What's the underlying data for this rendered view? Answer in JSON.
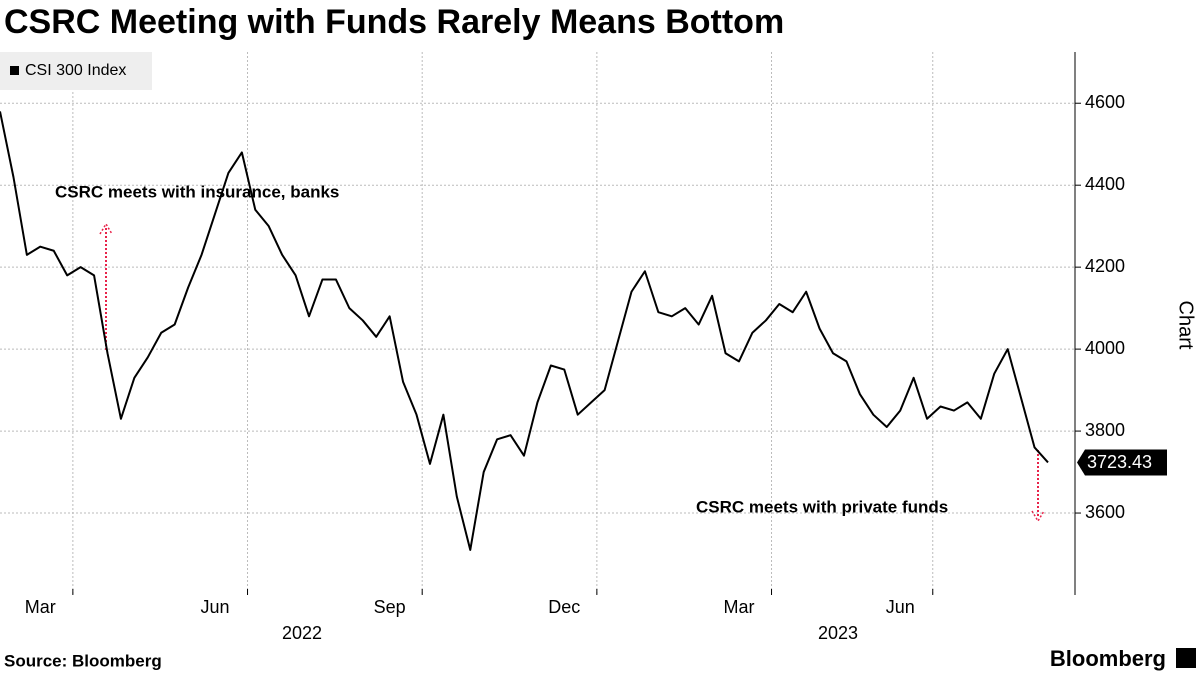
{
  "chart_data": {
    "type": "line",
    "title": "CSRC Meeting with Funds Rarely Means Bottom",
    "y_axis_label": "Chart",
    "source": "Source: Bloomberg",
    "logo": "Bloomberg",
    "years": [
      "2022",
      "2023"
    ],
    "annotations": [
      "CSRC meets with insurance, banks",
      "CSRC meets with private funds"
    ],
    "annotation_color": "#e8234a",
    "categories": [
      null,
      null,
      null,
      "Mar",
      null,
      null,
      null,
      null,
      null,
      null,
      null,
      null,
      null,
      null,
      null,
      null,
      "Jun",
      null,
      null,
      null,
      null,
      null,
      null,
      null,
      null,
      null,
      null,
      null,
      null,
      "Sep",
      null,
      null,
      null,
      null,
      null,
      null,
      null,
      null,
      null,
      null,
      null,
      null,
      "Dec",
      null,
      null,
      null,
      null,
      null,
      null,
      null,
      null,
      null,
      null,
      null,
      null,
      "Mar",
      null,
      null,
      null,
      null,
      null,
      null,
      null,
      null,
      null,
      null,
      null,
      "Jun",
      null,
      null,
      null,
      null,
      null,
      null,
      null,
      null,
      null,
      null,
      null
    ],
    "series": [
      {
        "name": "CSI 300 Index",
        "color": "#000000",
        "values": [
          4580,
          4420,
          4230,
          4250,
          4240,
          4180,
          4200,
          4180,
          3990,
          3830,
          3930,
          3980,
          4040,
          4060,
          4150,
          4230,
          4330,
          4430,
          4480,
          4340,
          4300,
          4230,
          4180,
          4080,
          4170,
          4170,
          4100,
          4070,
          4030,
          4080,
          3920,
          3840,
          3720,
          3840,
          3640,
          3510,
          3700,
          3780,
          3790,
          3740,
          3870,
          3960,
          3950,
          3840,
          3870,
          3900,
          4020,
          4140,
          4190,
          4090,
          4080,
          4100,
          4060,
          4130,
          3990,
          3970,
          4040,
          4070,
          4110,
          4090,
          4140,
          4050,
          3990,
          3970,
          3890,
          3840,
          3810,
          3850,
          3930,
          3830,
          3860,
          3850,
          3870,
          3830,
          3940,
          4000,
          3880,
          3760,
          3723.43
        ]
      }
    ],
    "ylim": [
      3400,
      4725
    ],
    "yticks": [
      3600,
      3800,
      4000,
      4200,
      4400,
      4600
    ],
    "grid": true
  }
}
